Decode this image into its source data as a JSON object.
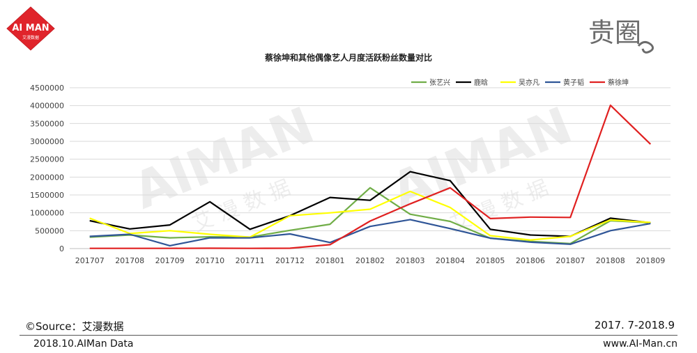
{
  "header": {
    "logo_text": "AI MAN",
    "logo_subtext": "艾漫数据",
    "right_logo_text": "贵圈"
  },
  "watermark": {
    "text": "AIMAN",
    "sub": "艾 漫 数 据"
  },
  "footer": {
    "source": "©Source：艾漫数据",
    "range": "2017. 7-2018.9",
    "date": "2018.10.AIMan Data",
    "site": "www.AI-Man.cn"
  },
  "colors": {
    "brand_red": "#e0242b",
    "grid": "#d9d9d9"
  },
  "chart_data": {
    "type": "line",
    "title": "蔡徐坤和其他偶像艺人月度活跃粉丝数量对比",
    "xlabel": "",
    "ylabel": "",
    "ylim": [
      0,
      4500000
    ],
    "yticks": [
      0,
      500000,
      1000000,
      1500000,
      2000000,
      2500000,
      3000000,
      3500000,
      4000000,
      4500000
    ],
    "grid": true,
    "legend": "top-right",
    "categories": [
      "201707",
      "201708",
      "201709",
      "201710",
      "201711",
      "201712",
      "201801",
      "201802",
      "201803",
      "201804",
      "201805",
      "201806",
      "201807",
      "201808",
      "201809"
    ],
    "series": [
      {
        "name": "张艺兴",
        "color": "#70ad47",
        "values": [
          320000,
          380000,
          300000,
          330000,
          320000,
          510000,
          680000,
          1700000,
          960000,
          760000,
          290000,
          200000,
          140000,
          780000,
          720000
        ]
      },
      {
        "name": "鹿晗",
        "color": "#000000",
        "values": [
          780000,
          550000,
          660000,
          1310000,
          540000,
          920000,
          1430000,
          1350000,
          2150000,
          1900000,
          540000,
          380000,
          340000,
          850000,
          720000
        ]
      },
      {
        "name": "吴亦凡",
        "color": "#ffff00",
        "values": [
          850000,
          420000,
          500000,
          400000,
          320000,
          920000,
          1000000,
          1100000,
          1600000,
          1150000,
          360000,
          240000,
          340000,
          800000,
          730000
        ]
      },
      {
        "name": "黄子韬",
        "color": "#2f5597",
        "values": [
          340000,
          400000,
          80000,
          300000,
          300000,
          410000,
          170000,
          620000,
          810000,
          560000,
          290000,
          180000,
          120000,
          500000,
          700000
        ]
      },
      {
        "name": "蔡徐坤",
        "color": "#e02020",
        "values": [
          5000,
          5000,
          5000,
          10000,
          5000,
          10000,
          110000,
          770000,
          1250000,
          1700000,
          840000,
          880000,
          870000,
          4010000,
          2920000
        ]
      }
    ]
  }
}
